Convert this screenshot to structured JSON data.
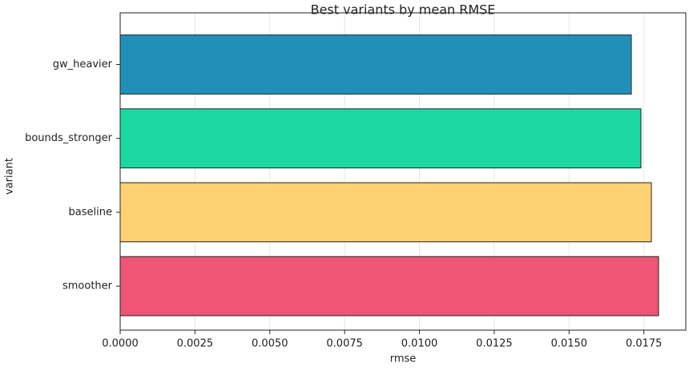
{
  "chart_data": {
    "type": "barh",
    "title": "Best variants by mean RMSE",
    "xlabel": "rmse",
    "ylabel": "variant",
    "categories": [
      "gw_heavier",
      "bounds_stronger",
      "baseline",
      "smoother"
    ],
    "values": [
      0.01708,
      0.0174,
      0.01775,
      0.01799
    ],
    "colors": [
      "#2190b9",
      "#1bd8a3",
      "#fed272",
      "#ee5577"
    ],
    "xlim": [
      0,
      0.0189
    ],
    "xticks": [
      {
        "value": 0,
        "label": "0.0000"
      },
      {
        "value": 0.0025,
        "label": "0.0025"
      },
      {
        "value": 0.005,
        "label": "0.0050"
      },
      {
        "value": 0.0075,
        "label": "0.0075"
      },
      {
        "value": 0.01,
        "label": "0.0100"
      },
      {
        "value": 0.0125,
        "label": "0.0125"
      },
      {
        "value": 0.015,
        "label": "0.0150"
      },
      {
        "value": 0.0175,
        "label": "0.0175"
      }
    ],
    "grid": true
  }
}
